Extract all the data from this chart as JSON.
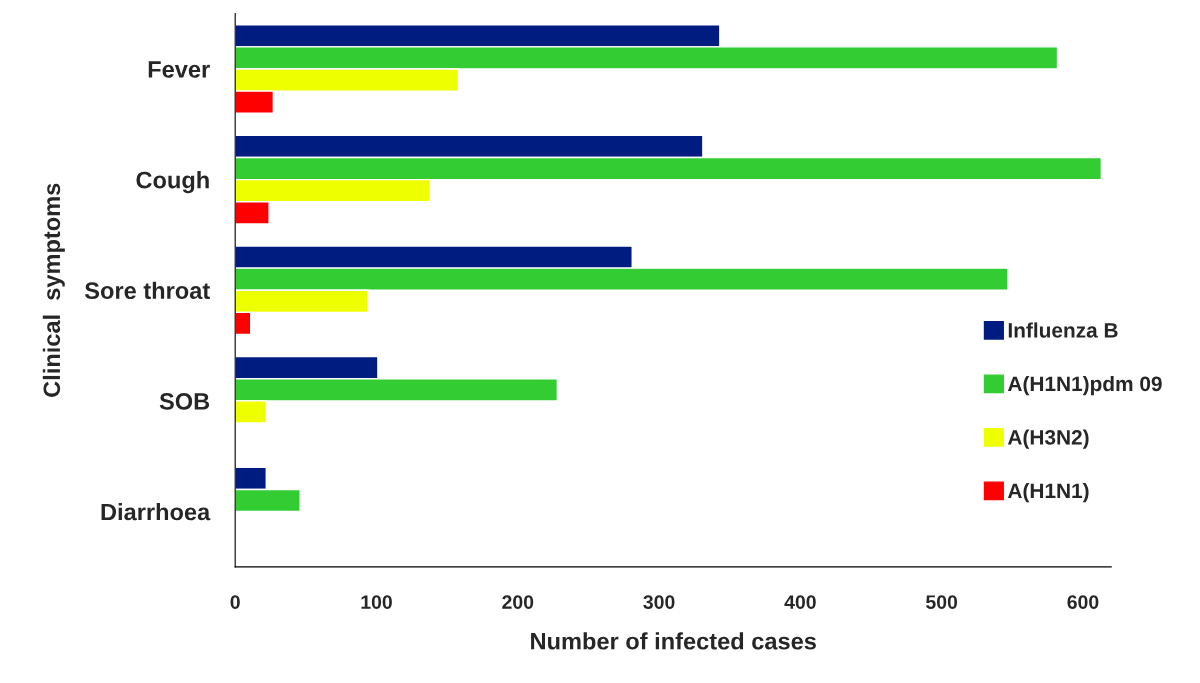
{
  "chart_data": {
    "type": "bar",
    "orientation": "horizontal",
    "xlabel": "Number of infected cases",
    "ylabel": "Clinical  symptoms",
    "categories": [
      "Fever",
      "Cough",
      "Sore throat",
      "SOB",
      "Diarrhoea"
    ],
    "series": [
      {
        "name": "Influenza B",
        "color": "#001c80",
        "values": [
          343,
          331,
          281,
          101,
          22
        ]
      },
      {
        "name": "A(H1N1)pdm 09",
        "color": "#33cc33",
        "values": [
          582,
          613,
          547,
          228,
          46
        ]
      },
      {
        "name": "A(H3N2)",
        "color": "#eeff00",
        "values": [
          158,
          138,
          94,
          22,
          null
        ]
      },
      {
        "name": "A(H1N1)",
        "color": "#ff0000",
        "values": [
          27,
          24,
          11,
          null,
          null
        ]
      }
    ],
    "xlim": [
      0,
      620
    ],
    "xticks": [
      0,
      100,
      200,
      300,
      400,
      500,
      600
    ],
    "grid": false,
    "legend": "right"
  }
}
